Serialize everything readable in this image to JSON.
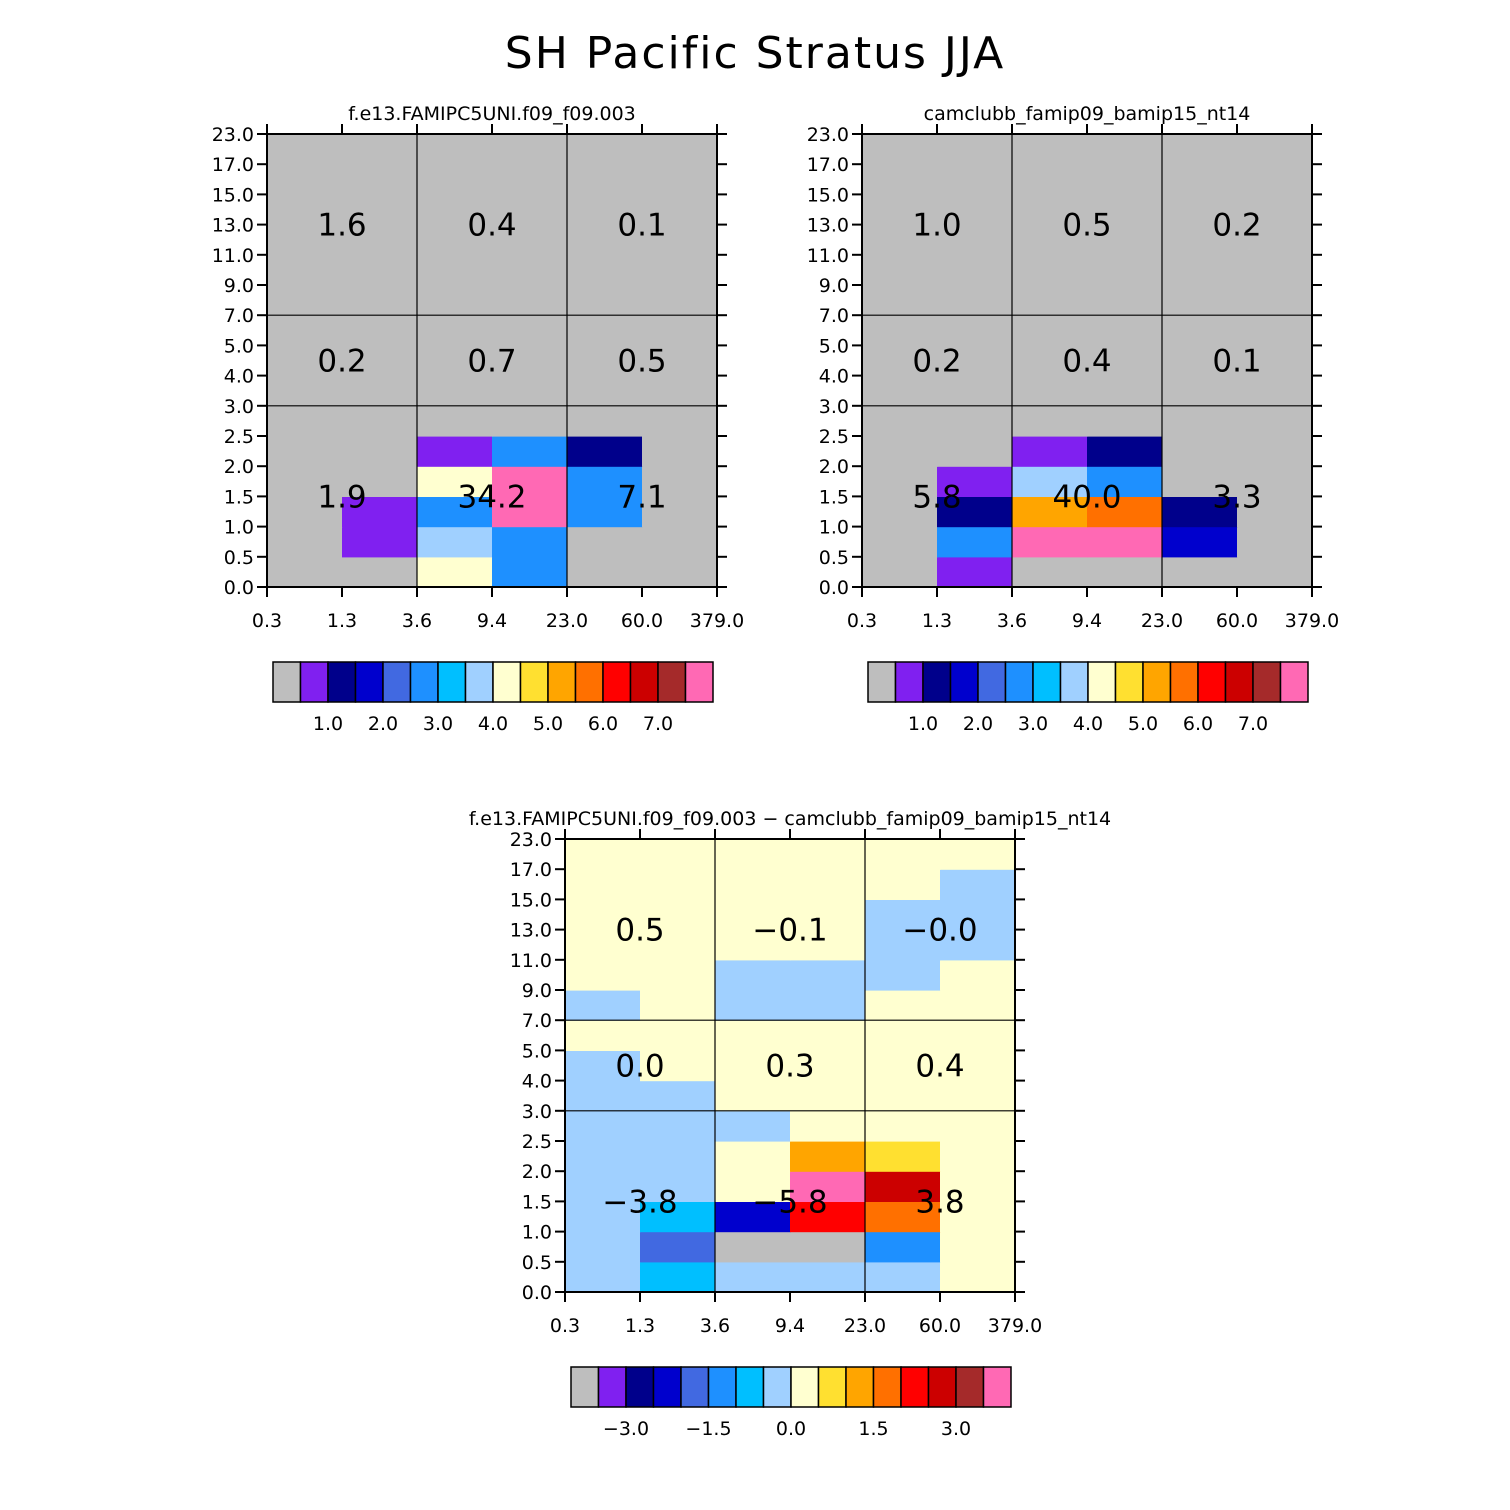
{
  "title": "SH Pacific Stratus JJA",
  "colors": {
    "palette": [
      "#bebebe",
      "#8020f0",
      "#00008b",
      "#0000cd",
      "#4169e1",
      "#1e90ff",
      "#00bfff",
      "#a0d0ff",
      "#ffffd0",
      "#ffe030",
      "#ffa500",
      "#ff7000",
      "#ff0000",
      "#cc0000",
      "#a52a2a",
      "#ff69b4"
    ],
    "grid_line": "#000000",
    "background": "#ffffff"
  },
  "chart_data": [
    {
      "type": "heatmap",
      "title": "f.e13.FAMIPC5UNI.f09_f09.003",
      "x_ticks": [
        "0.3",
        "1.3",
        "3.6",
        "9.4",
        "23.0",
        "60.0",
        "379.0"
      ],
      "y_ticks": [
        "0.0",
        "0.5",
        "1.0",
        "1.5",
        "2.0",
        "2.5",
        "3.0",
        "4.0",
        "5.0",
        "7.0",
        "9.0",
        "11.0",
        "13.0",
        "15.0",
        "17.0",
        "23.0"
      ],
      "cell_color_index": [
        [
          0,
          0,
          8,
          5,
          0,
          0
        ],
        [
          0,
          1,
          7,
          5,
          0,
          0
        ],
        [
          0,
          1,
          5,
          15,
          5,
          0
        ],
        [
          0,
          0,
          8,
          15,
          5,
          0
        ],
        [
          0,
          0,
          1,
          5,
          2,
          0
        ],
        [
          0,
          0,
          0,
          0,
          0,
          0
        ],
        [
          0,
          0,
          0,
          0,
          0,
          0
        ],
        [
          0,
          0,
          0,
          0,
          0,
          0
        ],
        [
          0,
          0,
          0,
          0,
          0,
          0
        ],
        [
          0,
          0,
          0,
          0,
          0,
          0
        ],
        [
          0,
          0,
          0,
          0,
          0,
          0
        ],
        [
          0,
          0,
          0,
          0,
          0,
          0
        ],
        [
          0,
          0,
          0,
          0,
          0,
          0
        ],
        [
          0,
          0,
          0,
          0,
          0,
          0
        ],
        [
          0,
          0,
          0,
          0,
          0,
          0
        ]
      ],
      "group_sums": [
        {
          "label": "1.6",
          "x_range": [
            0,
            2
          ],
          "y_range": [
            9,
            15
          ]
        },
        {
          "label": "0.4",
          "x_range": [
            2,
            4
          ],
          "y_range": [
            9,
            15
          ]
        },
        {
          "label": "0.1",
          "x_range": [
            4,
            6
          ],
          "y_range": [
            9,
            15
          ]
        },
        {
          "label": "0.2",
          "x_range": [
            0,
            2
          ],
          "y_range": [
            6,
            9
          ]
        },
        {
          "label": "0.7",
          "x_range": [
            2,
            4
          ],
          "y_range": [
            6,
            9
          ]
        },
        {
          "label": "0.5",
          "x_range": [
            4,
            6
          ],
          "y_range": [
            6,
            9
          ]
        },
        {
          "label": "1.9",
          "x_range": [
            0,
            2
          ],
          "y_range": [
            0,
            6
          ]
        },
        {
          "label": "34.2",
          "x_range": [
            2,
            4
          ],
          "y_range": [
            0,
            6
          ]
        },
        {
          "label": "7.1",
          "x_range": [
            4,
            6
          ],
          "y_range": [
            0,
            6
          ]
        }
      ],
      "colorbar": {
        "labels": [
          "1.0",
          "2.0",
          "3.0",
          "4.0",
          "5.0",
          "6.0",
          "7.0"
        ],
        "label_boundary_index": [
          2,
          4,
          6,
          8,
          10,
          12,
          14
        ]
      }
    },
    {
      "type": "heatmap",
      "title": "camclubb_famip09_bamip15_nt14",
      "x_ticks": [
        "0.3",
        "1.3",
        "3.6",
        "9.4",
        "23.0",
        "60.0",
        "379.0"
      ],
      "y_ticks": [
        "0.0",
        "0.5",
        "1.0",
        "1.5",
        "2.0",
        "2.5",
        "3.0",
        "4.0",
        "5.0",
        "7.0",
        "9.0",
        "11.0",
        "13.0",
        "15.0",
        "17.0",
        "23.0"
      ],
      "cell_color_index": [
        [
          0,
          1,
          0,
          0,
          0,
          0
        ],
        [
          0,
          5,
          15,
          15,
          3,
          0
        ],
        [
          0,
          2,
          10,
          11,
          2,
          0
        ],
        [
          0,
          1,
          7,
          5,
          0,
          0
        ],
        [
          0,
          0,
          1,
          2,
          0,
          0
        ],
        [
          0,
          0,
          0,
          0,
          0,
          0
        ],
        [
          0,
          0,
          0,
          0,
          0,
          0
        ],
        [
          0,
          0,
          0,
          0,
          0,
          0
        ],
        [
          0,
          0,
          0,
          0,
          0,
          0
        ],
        [
          0,
          0,
          0,
          0,
          0,
          0
        ],
        [
          0,
          0,
          0,
          0,
          0,
          0
        ],
        [
          0,
          0,
          0,
          0,
          0,
          0
        ],
        [
          0,
          0,
          0,
          0,
          0,
          0
        ],
        [
          0,
          0,
          0,
          0,
          0,
          0
        ],
        [
          0,
          0,
          0,
          0,
          0,
          0
        ]
      ],
      "group_sums": [
        {
          "label": "1.0",
          "x_range": [
            0,
            2
          ],
          "y_range": [
            9,
            15
          ]
        },
        {
          "label": "0.5",
          "x_range": [
            2,
            4
          ],
          "y_range": [
            9,
            15
          ]
        },
        {
          "label": "0.2",
          "x_range": [
            4,
            6
          ],
          "y_range": [
            9,
            15
          ]
        },
        {
          "label": "0.2",
          "x_range": [
            0,
            2
          ],
          "y_range": [
            6,
            9
          ]
        },
        {
          "label": "0.4",
          "x_range": [
            2,
            4
          ],
          "y_range": [
            6,
            9
          ]
        },
        {
          "label": "0.1",
          "x_range": [
            4,
            6
          ],
          "y_range": [
            6,
            9
          ]
        },
        {
          "label": "5.8",
          "x_range": [
            0,
            2
          ],
          "y_range": [
            0,
            6
          ]
        },
        {
          "label": "40.0",
          "x_range": [
            2,
            4
          ],
          "y_range": [
            0,
            6
          ]
        },
        {
          "label": "3.3",
          "x_range": [
            4,
            6
          ],
          "y_range": [
            0,
            6
          ]
        }
      ],
      "colorbar": {
        "labels": [
          "1.0",
          "2.0",
          "3.0",
          "4.0",
          "5.0",
          "6.0",
          "7.0"
        ],
        "label_boundary_index": [
          2,
          4,
          6,
          8,
          10,
          12,
          14
        ]
      }
    },
    {
      "type": "heatmap",
      "title": "f.e13.FAMIPC5UNI.f09_f09.003 − camclubb_famip09_bamip15_nt14",
      "x_ticks": [
        "0.3",
        "1.3",
        "3.6",
        "9.4",
        "23.0",
        "60.0",
        "379.0"
      ],
      "y_ticks": [
        "0.0",
        "0.5",
        "1.0",
        "1.5",
        "2.0",
        "2.5",
        "3.0",
        "4.0",
        "5.0",
        "7.0",
        "9.0",
        "11.0",
        "13.0",
        "15.0",
        "17.0",
        "23.0"
      ],
      "cell_color_index": [
        [
          7,
          6,
          7,
          7,
          7,
          8
        ],
        [
          7,
          4,
          0,
          0,
          5,
          8
        ],
        [
          7,
          6,
          3,
          12,
          11,
          8
        ],
        [
          7,
          7,
          8,
          15,
          13,
          8
        ],
        [
          7,
          7,
          8,
          10,
          9,
          8
        ],
        [
          7,
          7,
          7,
          8,
          8,
          8
        ],
        [
          7,
          7,
          8,
          8,
          8,
          8
        ],
        [
          7,
          8,
          8,
          8,
          8,
          8
        ],
        [
          8,
          8,
          8,
          8,
          8,
          8
        ],
        [
          7,
          8,
          7,
          7,
          8,
          8
        ],
        [
          8,
          8,
          7,
          7,
          7,
          8
        ],
        [
          8,
          8,
          8,
          8,
          7,
          7
        ],
        [
          8,
          8,
          8,
          8,
          7,
          7
        ],
        [
          8,
          8,
          8,
          8,
          8,
          7
        ],
        [
          8,
          8,
          8,
          8,
          8,
          8
        ]
      ],
      "group_sums": [
        {
          "label": "0.5",
          "x_range": [
            0,
            2
          ],
          "y_range": [
            9,
            15
          ]
        },
        {
          "label": "−0.1",
          "x_range": [
            2,
            4
          ],
          "y_range": [
            9,
            15
          ]
        },
        {
          "label": "−0.0",
          "x_range": [
            4,
            6
          ],
          "y_range": [
            9,
            15
          ]
        },
        {
          "label": "0.0",
          "x_range": [
            0,
            2
          ],
          "y_range": [
            6,
            9
          ]
        },
        {
          "label": "0.3",
          "x_range": [
            2,
            4
          ],
          "y_range": [
            6,
            9
          ]
        },
        {
          "label": "0.4",
          "x_range": [
            4,
            6
          ],
          "y_range": [
            6,
            9
          ]
        },
        {
          "label": "−3.8",
          "x_range": [
            0,
            2
          ],
          "y_range": [
            0,
            6
          ]
        },
        {
          "label": "−5.8",
          "x_range": [
            2,
            4
          ],
          "y_range": [
            0,
            6
          ]
        },
        {
          "label": "3.8",
          "x_range": [
            4,
            6
          ],
          "y_range": [
            0,
            6
          ]
        }
      ],
      "colorbar": {
        "labels": [
          "−3.0",
          "−1.5",
          "0.0",
          "1.5",
          "3.0"
        ],
        "label_boundary_index": [
          2,
          5,
          8,
          11,
          14
        ]
      }
    }
  ]
}
